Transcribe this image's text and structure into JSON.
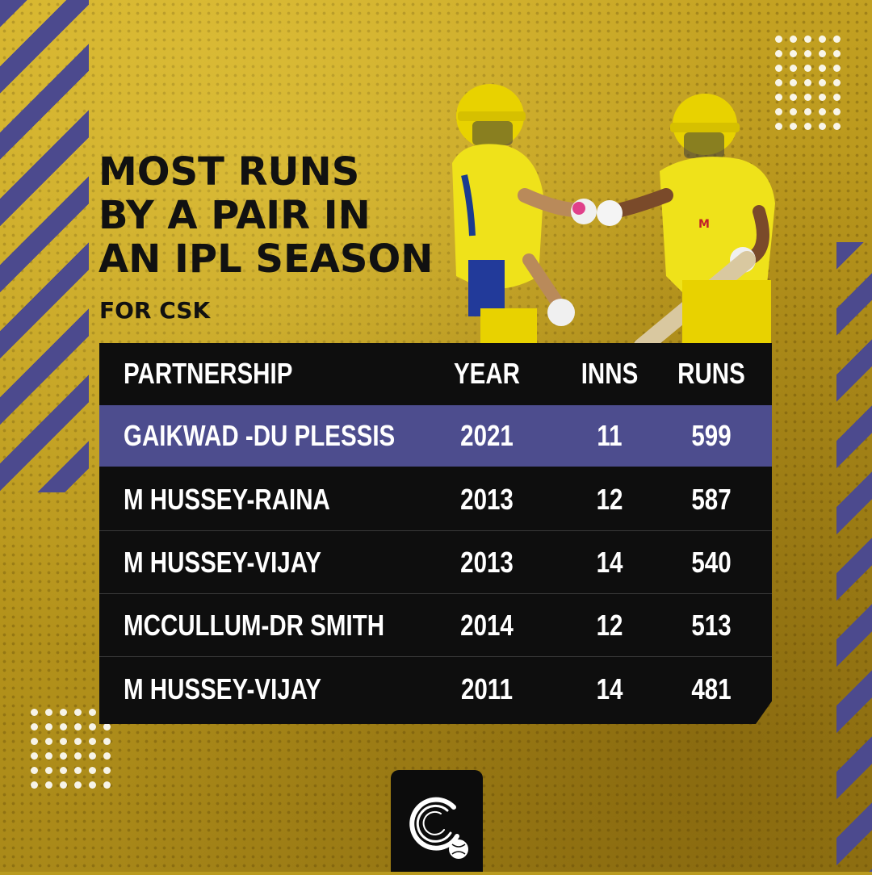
{
  "title_lines": [
    "MOST RUNS",
    "BY A PAIR IN",
    "AN IPL SEASON"
  ],
  "subtitle": "FOR CSK",
  "table": {
    "headers": {
      "partnership": "PARTNERSHIP",
      "year": "YEAR",
      "inns": "INNS",
      "runs": "RUNS"
    },
    "rows": [
      {
        "partnership": "GAIKWAD -DU PLESSIS",
        "year": "2021",
        "inns": "11",
        "runs": "599"
      },
      {
        "partnership": "M HUSSEY-RAINA",
        "year": "2013",
        "inns": "12",
        "runs": "587"
      },
      {
        "partnership": "M HUSSEY-VIJAY",
        "year": "2013",
        "inns": "14",
        "runs": "540"
      },
      {
        "partnership": "MCCULLUM-DR SMITH",
        "year": "2014",
        "inns": "12",
        "runs": "513"
      },
      {
        "partnership": "M HUSSEY-VIJAY",
        "year": "2011",
        "inns": "14",
        "runs": "481"
      }
    ]
  },
  "colors": {
    "accent_purple": "#4d4d8e",
    "background_gold": "#b99a1e",
    "table_black": "#0e0e0e"
  },
  "logo": {
    "icon": "cricket-ball-logo-icon"
  }
}
